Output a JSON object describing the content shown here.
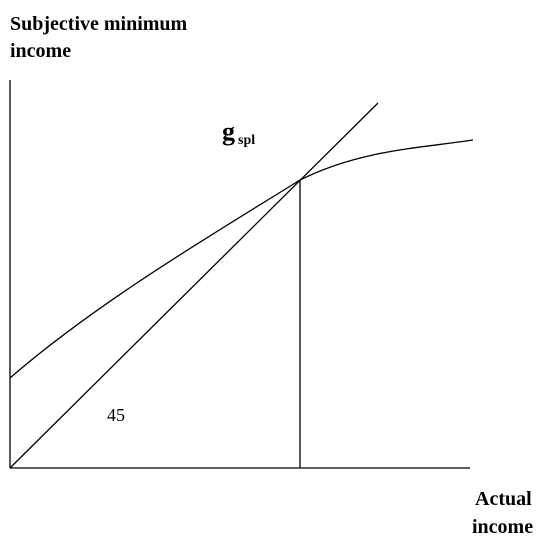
{
  "y_axis": {
    "label_lines": [
      "Subjective minimum",
      "income"
    ]
  },
  "x_axis": {
    "label_lines": [
      "Actual",
      "income"
    ]
  },
  "curve": {
    "label": "g",
    "label_subscript": "spl"
  },
  "angle": {
    "label": "45"
  }
}
